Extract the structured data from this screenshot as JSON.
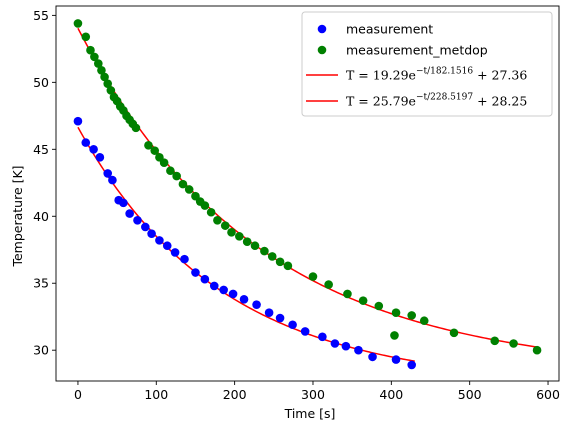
{
  "chart_data": {
    "type": "scatter",
    "title": "",
    "xlabel": "Time [s]",
    "ylabel": "Temperature [K]",
    "xlim": [
      -28,
      614
    ],
    "ylim": [
      27.7,
      55.7
    ],
    "xticks": [
      0,
      100,
      200,
      300,
      400,
      500,
      600
    ],
    "yticks": [
      30,
      35,
      40,
      45,
      50,
      55
    ],
    "grid": false,
    "legend_position": "top-right",
    "series": [
      {
        "name": "measurement",
        "kind": "points",
        "color": "#0000ff",
        "x": [
          0,
          10,
          20,
          28,
          38,
          44,
          52,
          58,
          66,
          76,
          86,
          94,
          104,
          114,
          124,
          136,
          150,
          162,
          174,
          186,
          198,
          212,
          228,
          244,
          258,
          274,
          290,
          312,
          328,
          342,
          358,
          376,
          406,
          426
        ],
        "y": [
          47.1,
          45.5,
          45.0,
          44.4,
          43.2,
          42.7,
          41.2,
          41.0,
          40.2,
          39.7,
          39.2,
          38.7,
          38.2,
          37.8,
          37.3,
          36.8,
          35.8,
          35.3,
          34.8,
          34.5,
          34.2,
          33.8,
          33.4,
          32.8,
          32.4,
          31.9,
          31.4,
          31.0,
          30.5,
          30.3,
          30.0,
          29.5,
          29.3,
          28.9
        ]
      },
      {
        "name": "measurement_metdop",
        "kind": "points",
        "color": "#008000",
        "x": [
          0,
          10,
          16,
          21,
          26,
          30,
          34,
          38,
          42,
          46,
          50,
          54,
          58,
          62,
          66,
          70,
          74,
          90,
          98,
          104,
          110,
          118,
          126,
          134,
          142,
          150,
          156,
          162,
          170,
          178,
          188,
          196,
          206,
          216,
          226,
          238,
          248,
          258,
          268,
          300,
          320,
          344,
          364,
          384,
          406,
          426,
          442,
          480,
          532,
          556,
          586,
          404
        ],
        "y": [
          54.4,
          53.4,
          52.4,
          51.9,
          51.4,
          50.9,
          50.4,
          49.9,
          49.4,
          48.9,
          48.6,
          48.2,
          47.9,
          47.5,
          47.2,
          46.9,
          46.6,
          45.3,
          44.9,
          44.4,
          44.0,
          43.4,
          43.0,
          42.4,
          42.0,
          41.5,
          41.1,
          40.8,
          40.3,
          39.7,
          39.3,
          38.8,
          38.5,
          38.1,
          37.8,
          37.4,
          37.0,
          36.6,
          36.3,
          35.5,
          34.9,
          34.2,
          33.7,
          33.3,
          32.8,
          32.6,
          32.2,
          31.3,
          30.7,
          30.5,
          30.0,
          31.1
        ]
      },
      {
        "name": "T = 19.29e^(−t/182.1516) + 27.36",
        "kind": "fit",
        "color": "#ff0000",
        "A": 19.29,
        "tau": 182.1516,
        "C": 27.36,
        "t_range": [
          0,
          430
        ]
      },
      {
        "name": "T = 25.79e^(−t/228.5197) + 28.25",
        "kind": "fit",
        "color": "#ff0000",
        "A": 25.79,
        "tau": 228.5197,
        "C": 28.25,
        "t_range": [
          0,
          586
        ]
      }
    ]
  },
  "legend": {
    "items": [
      {
        "type": "marker",
        "color": "#0000ff",
        "label": "measurement"
      },
      {
        "type": "marker",
        "color": "#008000",
        "label": "measurement_metdop"
      },
      {
        "type": "line",
        "color": "#ff0000",
        "lhs": "T = 19.29e",
        "exp": "−t/182.1516",
        "rhs": " + 27.36"
      },
      {
        "type": "line",
        "color": "#ff0000",
        "lhs": "T = 25.79e",
        "exp": "−t/228.5197",
        "rhs": " + 28.25"
      }
    ]
  }
}
